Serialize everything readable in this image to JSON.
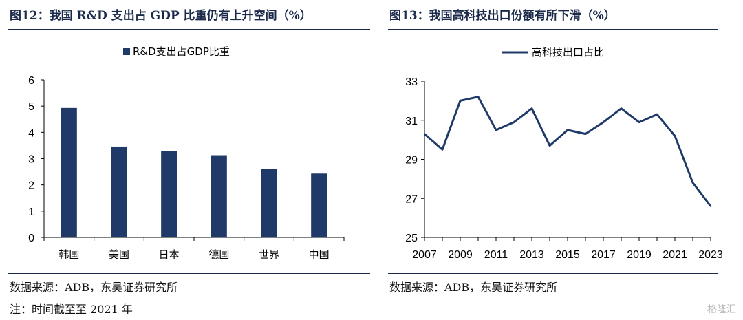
{
  "left": {
    "title": "图12：我国 R&D 支出占 GDP 比重仍有上升空间（%）",
    "source": "数据来源：ADB，东吴证券研究所",
    "note": "注：时间截至至 2021 年"
  },
  "right": {
    "title": "图13：我国高科技出口份额有所下滑（%）",
    "source": "数据来源：ADB，东吴证券研究所"
  },
  "watermark": "格隆汇",
  "colors": {
    "bar": "#1f3a68",
    "line": "#1f3a68",
    "title": "#1b2a4a"
  },
  "chart_data": [
    {
      "type": "bar",
      "categories": [
        "韩国",
        "美国",
        "日本",
        "德国",
        "世界",
        "中国"
      ],
      "series": [
        {
          "name": "R&D支出占GDP比重",
          "values": [
            4.93,
            3.46,
            3.29,
            3.13,
            2.62,
            2.43
          ]
        }
      ],
      "ylim": [
        0,
        6
      ],
      "yticks": [
        "0",
        "1",
        "2",
        "3",
        "4",
        "5",
        "6"
      ],
      "legend": "top-center",
      "grid": false
    },
    {
      "type": "line",
      "x": [
        2007,
        2008,
        2009,
        2010,
        2011,
        2012,
        2013,
        2014,
        2015,
        2016,
        2017,
        2018,
        2019,
        2020,
        2021,
        2022,
        2023
      ],
      "series": [
        {
          "name": "高科技出口占比",
          "values": [
            30.3,
            29.5,
            32.0,
            32.2,
            30.5,
            30.9,
            31.6,
            29.7,
            30.5,
            30.3,
            30.9,
            31.6,
            30.9,
            31.3,
            30.2,
            27.8,
            26.6
          ]
        }
      ],
      "ylim": [
        25,
        33
      ],
      "yticks": [
        "25",
        "27",
        "29",
        "31",
        "33"
      ],
      "xticks": [
        "2007",
        "2009",
        "2011",
        "2013",
        "2015",
        "2017",
        "2019",
        "2021",
        "2023"
      ],
      "legend": "top-center",
      "grid": false
    }
  ]
}
